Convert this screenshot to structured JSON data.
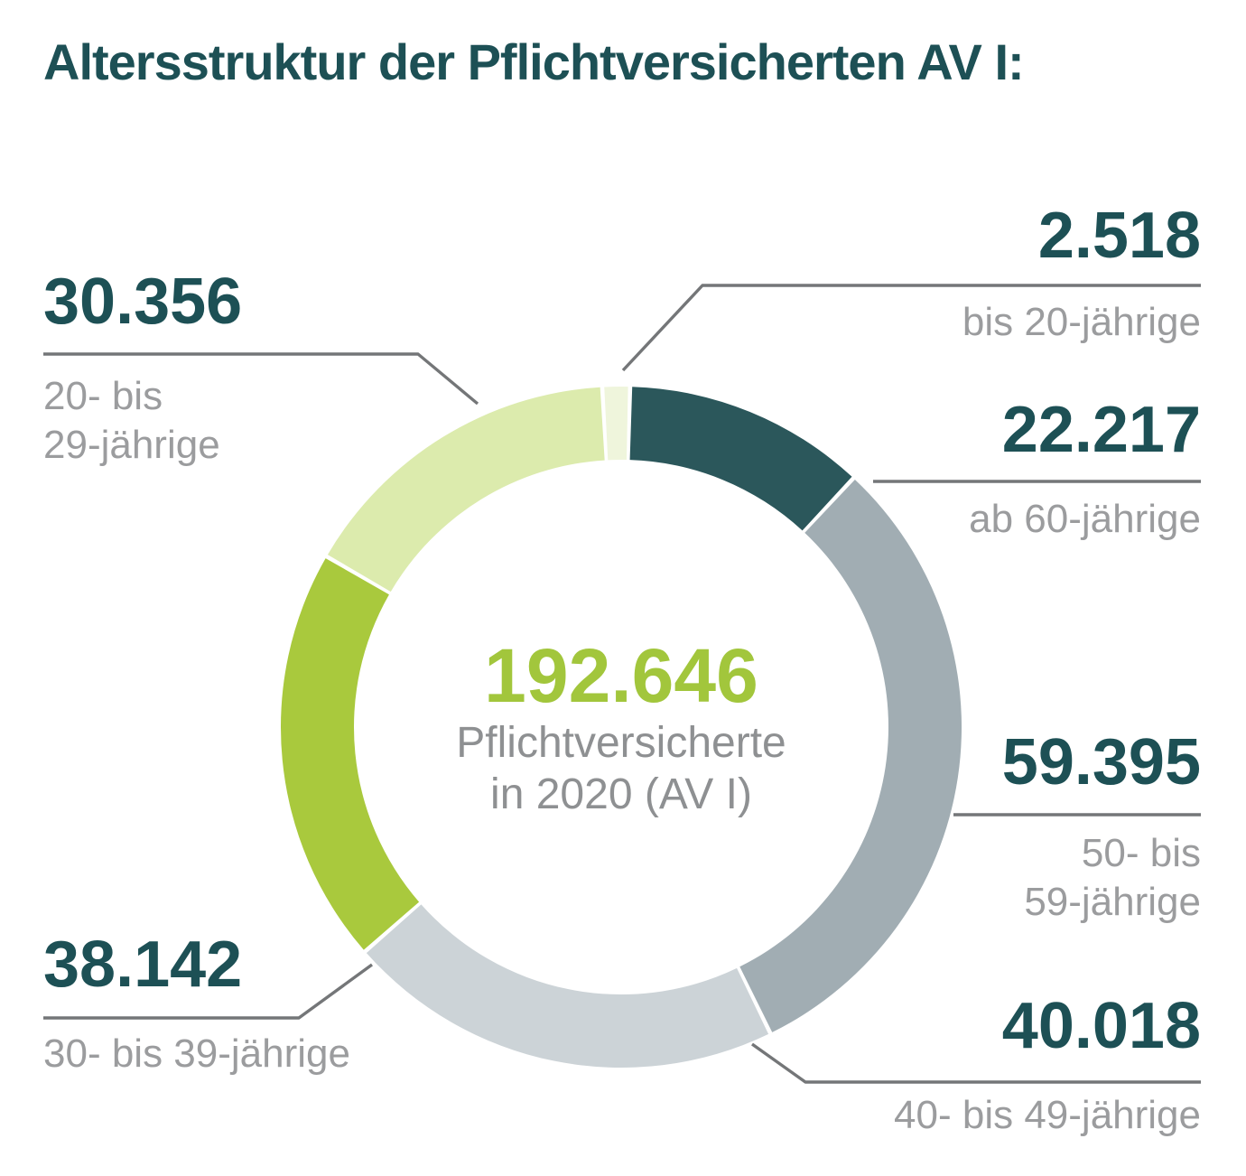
{
  "title": "Altersstruktur der Pflichtversicherten AV I:",
  "center": {
    "value": "192.646",
    "caption_line1": "Pflichtversicherte",
    "caption_line2": "in 2020 (AV I)"
  },
  "callouts": {
    "bis20": {
      "number": "2.518",
      "lines": [
        "bis 20-jährige"
      ]
    },
    "ab60": {
      "number": "22.217",
      "lines": [
        "ab 60-jährige"
      ]
    },
    "age50": {
      "number": "59.395",
      "lines": [
        "50- bis",
        "59-jährige"
      ]
    },
    "age40": {
      "number": "40.018",
      "lines": [
        "40- bis 49-jährige"
      ]
    },
    "age30": {
      "number": "38.142",
      "lines": [
        "30- bis 39-jährige"
      ]
    },
    "age20": {
      "number": "30.356",
      "lines": [
        "20- bis",
        "29-jährige"
      ]
    }
  },
  "chart_data": {
    "type": "pie",
    "subtype": "donut",
    "title": "Altersstruktur der Pflichtversicherten AV I:",
    "total": 192646,
    "total_display": "192.646",
    "center_label": "Pflichtversicherte in 2020 (AV I)",
    "start_angle_deg": -3.2,
    "direction": "clockwise-from-top",
    "segments": [
      {
        "label": "bis 20-jährige",
        "value": 2518,
        "display": "2.518",
        "color": "#eff5dc"
      },
      {
        "label": "ab 60-jährige",
        "value": 22217,
        "display": "22.217",
        "color": "#2b575b"
      },
      {
        "label": "50- bis 59-jährige",
        "value": 59395,
        "display": "59.395",
        "color": "#a1adb3"
      },
      {
        "label": "40- bis 49-jährige",
        "value": 40018,
        "display": "40.018",
        "color": "#ccd3d7"
      },
      {
        "label": "30- bis 39-jährige",
        "value": 38142,
        "display": "38.142",
        "color": "#a9c93d"
      },
      {
        "label": "20- bis 29-jährige",
        "value": 30356,
        "display": "30.356",
        "color": "#dcebad"
      }
    ],
    "colors": {
      "accent_green": "#a2c63c",
      "number_teal": "#1d5055",
      "label_gray": "#9b9c9e",
      "leader_line_gray": "#747678",
      "background": "#ffffff"
    }
  }
}
